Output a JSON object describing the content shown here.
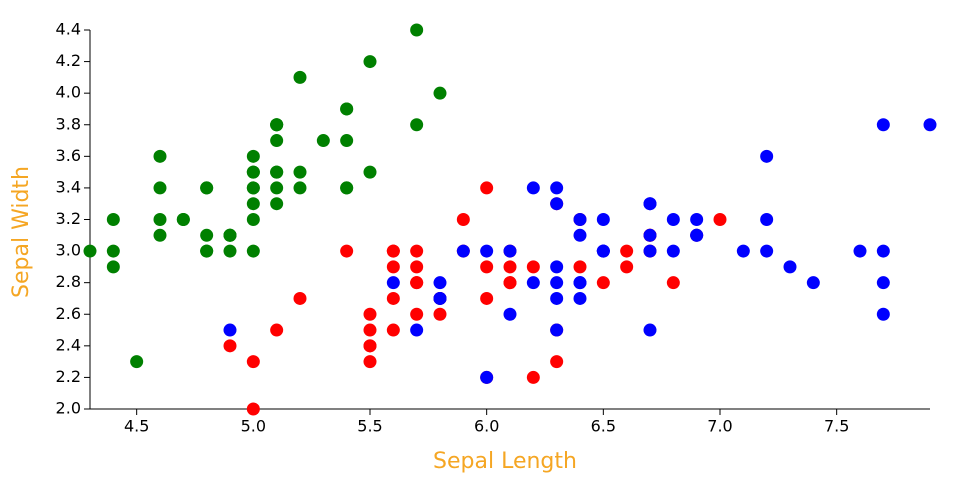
{
  "chart_data": {
    "type": "scatter",
    "x_label": "Sepal Length",
    "y_label": "Sepal Width",
    "xlim": [
      4.3,
      7.9
    ],
    "ylim": [
      2.0,
      4.4
    ],
    "xticks": [
      4.5,
      {
        "value": 5,
        "label": "5.0"
      },
      5.5,
      {
        "value": 6,
        "label": "6.0"
      },
      6.5,
      {
        "value": 7,
        "label": "7.0"
      },
      7.5
    ],
    "yticks": [
      {
        "value": 2,
        "label": "2.0"
      },
      2.2,
      2.4,
      2.6,
      2.8,
      {
        "value": 3,
        "label": "3.0"
      },
      3.2,
      3.4,
      3.6,
      3.8,
      {
        "value": 4,
        "label": "4.0"
      },
      4.2,
      4.4
    ],
    "series": [
      {
        "color": "#008000",
        "x": [
          5.1,
          4.9,
          4.7,
          4.6,
          5.0,
          5.4,
          4.6,
          5.0,
          4.4,
          4.9,
          5.4,
          4.8,
          4.8,
          4.3,
          5.8,
          5.7,
          5.4,
          5.1,
          5.7,
          5.1,
          5.4,
          5.1,
          4.6,
          5.1,
          4.8,
          5.0,
          5.0,
          5.2,
          5.2,
          4.7,
          4.8,
          5.4,
          5.2,
          5.5,
          4.9,
          5.0,
          5.5,
          4.9,
          4.4,
          5.1,
          5.0,
          4.5,
          4.4,
          5.0,
          5.1,
          4.8,
          5.1,
          4.6,
          5.3,
          5.0
        ],
        "values": [
          3.5,
          3.0,
          3.2,
          3.1,
          3.6,
          3.9,
          3.4,
          3.4,
          2.9,
          3.1,
          3.7,
          3.4,
          3.0,
          3.0,
          4.0,
          4.4,
          3.9,
          3.5,
          3.8,
          3.8,
          3.4,
          3.7,
          3.6,
          3.3,
          3.4,
          3.0,
          3.4,
          3.5,
          3.4,
          3.2,
          3.1,
          3.4,
          4.1,
          4.2,
          3.1,
          3.2,
          3.5,
          3.1,
          3.0,
          3.4,
          3.5,
          2.3,
          3.2,
          3.5,
          3.8,
          3.0,
          3.8,
          3.2,
          3.7,
          3.3
        ]
      },
      {
        "color": "#ff0000",
        "x": [
          7.0,
          6.4,
          6.9,
          5.5,
          6.5,
          5.7,
          6.3,
          4.9,
          6.6,
          5.2,
          5.0,
          5.9,
          6.0,
          6.1,
          5.6,
          6.7,
          5.6,
          5.8,
          6.2,
          5.6,
          5.9,
          6.1,
          6.3,
          6.1,
          6.4,
          6.6,
          6.8,
          6.7,
          6.0,
          5.7,
          5.5,
          5.5,
          5.8,
          6.0,
          5.4,
          6.0,
          6.7,
          6.3,
          5.6,
          5.5,
          5.5,
          6.1,
          5.8,
          5.0,
          5.6,
          5.7,
          5.7,
          6.2,
          5.1,
          5.7
        ],
        "values": [
          3.2,
          3.2,
          3.1,
          2.3,
          2.8,
          2.8,
          3.3,
          2.4,
          2.9,
          2.7,
          2.0,
          3.0,
          2.2,
          2.9,
          2.9,
          3.1,
          3.0,
          2.7,
          2.2,
          2.5,
          3.2,
          2.8,
          2.5,
          2.8,
          2.9,
          3.0,
          2.8,
          3.0,
          2.9,
          2.6,
          2.4,
          2.4,
          2.7,
          2.7,
          3.0,
          3.4,
          3.1,
          2.3,
          3.0,
          2.5,
          2.6,
          3.0,
          2.6,
          2.3,
          2.7,
          3.0,
          2.9,
          2.9,
          2.5,
          2.8
        ]
      },
      {
        "color": "#0000ff",
        "x": [
          6.3,
          5.8,
          7.1,
          6.3,
          6.5,
          7.6,
          4.9,
          7.3,
          6.7,
          7.2,
          6.5,
          6.4,
          6.8,
          5.7,
          5.8,
          6.4,
          6.5,
          7.7,
          7.7,
          6.0,
          6.9,
          5.6,
          7.7,
          6.3,
          6.7,
          7.2,
          6.2,
          6.1,
          6.4,
          7.2,
          7.4,
          7.9,
          6.4,
          6.3,
          6.1,
          7.7,
          6.3,
          6.4,
          6.0,
          6.9,
          6.7,
          6.9,
          5.8,
          6.8,
          6.7,
          6.7,
          6.3,
          6.5,
          6.2,
          5.9
        ],
        "values": [
          3.3,
          2.7,
          3.0,
          2.9,
          3.0,
          3.0,
          2.5,
          2.9,
          2.5,
          3.6,
          3.2,
          2.7,
          3.0,
          2.5,
          2.8,
          3.2,
          3.0,
          3.8,
          2.6,
          2.2,
          3.2,
          2.8,
          2.8,
          2.7,
          3.3,
          3.2,
          2.8,
          3.0,
          2.8,
          3.0,
          2.8,
          3.8,
          2.8,
          2.8,
          2.6,
          3.0,
          3.4,
          3.1,
          3.0,
          3.1,
          3.1,
          3.1,
          2.7,
          3.2,
          3.3,
          3.0,
          2.5,
          3.0,
          3.4,
          3.0
        ]
      }
    ]
  }
}
